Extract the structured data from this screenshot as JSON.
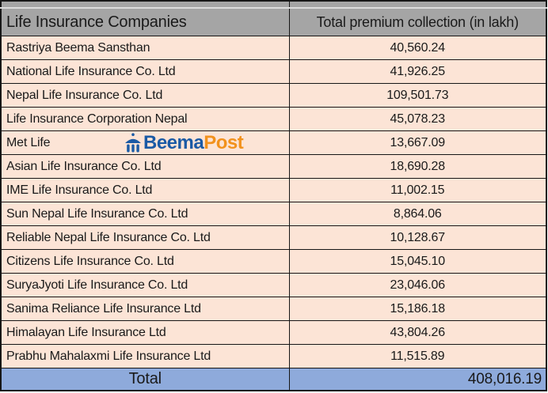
{
  "colors": {
    "header_bg": "#A5A5A5",
    "row_bg": "#FCE4D6",
    "total_bg": "#8EAADB",
    "border": "#161616",
    "text": "#1A1A1A",
    "logo_blue": "#1A5AA5",
    "logo_orange": "#F2921D"
  },
  "table": {
    "columns": [
      {
        "label": "Life Insurance Companies"
      },
      {
        "label": "Total premium collection (in lakh)"
      }
    ],
    "rows": [
      {
        "company": "Rastriya Beema Sansthan",
        "premium": "40,560.24"
      },
      {
        "company": "National Life Insurance Co. Ltd",
        "premium": "41,926.25"
      },
      {
        "company": "Nepal Life Insurance Co. Ltd",
        "premium": "109,501.73"
      },
      {
        "company": "Life Insurance Corporation Nepal",
        "premium": "45,078.23"
      },
      {
        "company": "Met Life",
        "premium": "13,667.09"
      },
      {
        "company": "Asian Life Insurance Co. Ltd",
        "premium": "18,690.28"
      },
      {
        "company": "IME Life Insurance Co. Ltd",
        "premium": "11,002.15"
      },
      {
        "company": "Sun Nepal Life Insurance Co. Ltd",
        "premium": "8,864.06"
      },
      {
        "company": "Reliable Nepal Life Insurance Co. Ltd",
        "premium": "10,128.67"
      },
      {
        "company": "Citizens Life Insurance Co. Ltd",
        "premium": "15,045.10"
      },
      {
        "company": "SuryaJyoti Life Insurance Co. Ltd",
        "premium": "23,046.06"
      },
      {
        "company": "Sanima Reliance Life Insurance Ltd",
        "premium": "15,186.18"
      },
      {
        "company": "Himalayan Life Insurance Ltd",
        "premium": "43,804.26"
      },
      {
        "company": "Prabhu Mahalaxmi Life Insurance Ltd",
        "premium": "11,515.89"
      }
    ],
    "total_label": "Total",
    "total_value": "408,016.19"
  },
  "watermark": {
    "brand": "BeemaPost",
    "part1": "Beema",
    "part2": "Post",
    "icon": "umbrella-pavilion-icon"
  },
  "chart_data": {
    "type": "table",
    "title": "",
    "columns": [
      "Life Insurance Companies",
      "Total premium collection (in lakh)"
    ],
    "rows": [
      [
        "Rastriya Beema Sansthan",
        40560.24
      ],
      [
        "National Life Insurance Co. Ltd",
        41926.25
      ],
      [
        "Nepal Life Insurance Co. Ltd",
        109501.73
      ],
      [
        "Life Insurance Corporation Nepal",
        45078.23
      ],
      [
        "Met Life",
        13667.09
      ],
      [
        "Asian Life Insurance Co. Ltd",
        18690.28
      ],
      [
        "IME Life Insurance Co. Ltd",
        11002.15
      ],
      [
        "Sun Nepal Life Insurance Co. Ltd",
        8864.06
      ],
      [
        "Reliable Nepal Life Insurance Co. Ltd",
        10128.67
      ],
      [
        "Citizens Life Insurance Co. Ltd",
        15045.1
      ],
      [
        "SuryaJyoti Life Insurance Co. Ltd",
        23046.06
      ],
      [
        "Sanima Reliance Life Insurance Ltd",
        15186.18
      ],
      [
        "Himalayan Life Insurance Ltd",
        43804.26
      ],
      [
        "Prabhu Mahalaxmi Life Insurance Ltd",
        11515.89
      ]
    ],
    "total": [
      "Total",
      408016.19
    ]
  }
}
